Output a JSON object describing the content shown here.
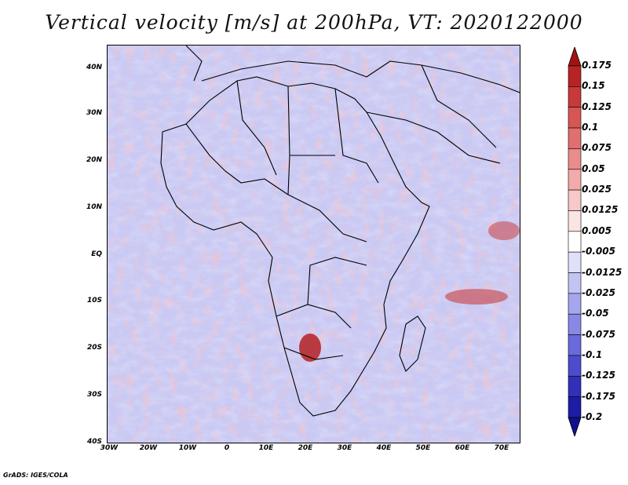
{
  "title": "Vertical velocity [m/s] at 200hPa, VT: 2020122000",
  "credit": "GrADS: IGES/COLA",
  "map": {
    "lat_ticks": [
      "40N",
      "30N",
      "20N",
      "10N",
      "EQ",
      "10S",
      "20S",
      "30S",
      "40S"
    ],
    "lon_ticks": [
      "30W",
      "20W",
      "10W",
      "0",
      "10E",
      "20E",
      "30E",
      "40E",
      "50E",
      "60E",
      "70E"
    ],
    "lat_range": [
      -40,
      45
    ],
    "lon_range": [
      -30,
      75
    ]
  },
  "colorbar": {
    "labels": [
      "0.175",
      "0.15",
      "0.125",
      "0.1",
      "0.075",
      "0.05",
      "0.025",
      "0.0125",
      "0.005",
      "-0.005",
      "-0.0125",
      "-0.025",
      "-0.05",
      "-0.075",
      "-0.1",
      "-0.125",
      "-0.175",
      "-0.2"
    ],
    "colors": [
      "#a01414",
      "#b82424",
      "#c83a3a",
      "#d65656",
      "#e07070",
      "#ea8c8c",
      "#f2aaaa",
      "#f8c8c8",
      "#fce4e4",
      "#ffffff",
      "#e0e0fb",
      "#c4c4f4",
      "#a6a6ee",
      "#8888e6",
      "#6a6adc",
      "#4c4ccc",
      "#3030b8",
      "#1c1ca4",
      "#10108e"
    ]
  }
}
